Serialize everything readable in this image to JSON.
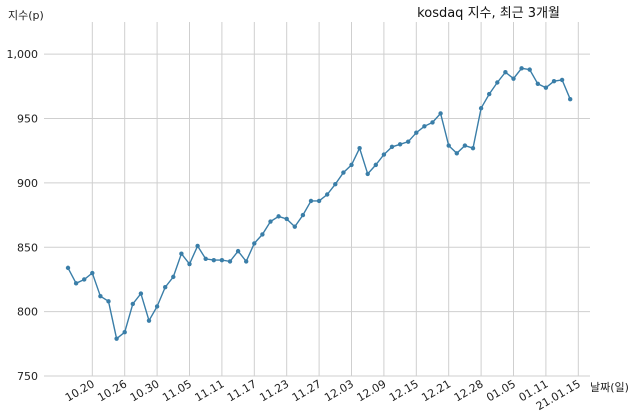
{
  "chart_data": {
    "type": "line",
    "title": "kosdaq 지수, 최근 3개월",
    "ylabel": "지수(p)",
    "xlabel": "날짜(일)",
    "ylim": [
      750,
      1025
    ],
    "yticks": [
      750,
      800,
      850,
      900,
      950,
      1000
    ],
    "ytick_labels": [
      "750",
      "800",
      "850",
      "900",
      "950",
      "1,000"
    ],
    "xtick_labels": [
      "10.20",
      "10.26",
      "10.30",
      "11.05",
      "11.11",
      "11.17",
      "11.23",
      "11.27",
      "12.03",
      "12.09",
      "12.15",
      "12.21",
      "12.28",
      "01.05",
      "01.11",
      "21.01.15"
    ],
    "xtick_index": [
      3,
      7,
      11,
      15,
      19,
      23,
      27,
      31,
      35,
      39,
      43,
      47,
      51,
      55,
      59,
      63
    ],
    "grid": true,
    "line_color": "#3a7ea8",
    "series": [
      {
        "values": [
          834,
          822,
          825,
          830,
          812,
          808,
          779,
          784,
          806,
          814,
          793,
          804,
          819,
          827,
          845,
          837,
          851,
          841,
          840,
          840,
          839,
          847,
          839,
          853,
          860,
          870,
          874,
          872,
          866,
          875,
          886,
          886,
          891,
          899,
          908,
          914,
          927,
          907,
          914,
          922,
          928,
          930,
          932,
          939,
          944,
          947,
          954,
          929,
          923,
          929,
          927,
          958,
          969,
          978,
          986,
          981,
          989,
          988,
          977,
          974,
          979,
          980,
          965
        ]
      }
    ]
  }
}
